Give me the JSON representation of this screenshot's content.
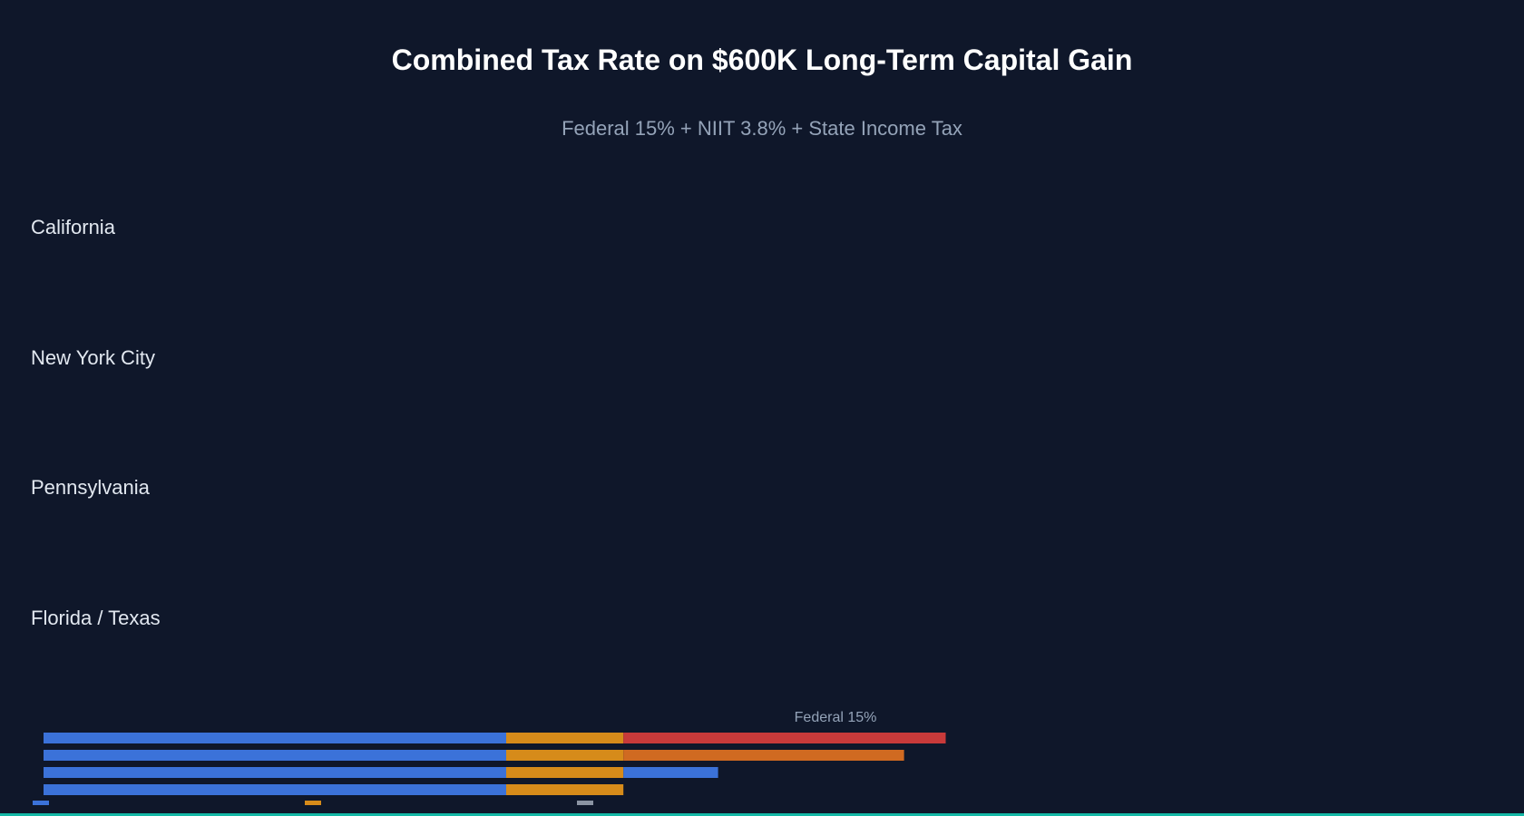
{
  "title": "Combined Tax Rate on $600K Long-Term Capital Gain",
  "subtitle": "Federal 15% + NIIT 3.8% + State Income Tax",
  "colors": {
    "background": "#0f172a",
    "federal": "#3b72d9",
    "niit": "#d68b1a",
    "state_ca": "#c83a3a",
    "state_nyc": "#d06a21",
    "state_pa": "#3b72d9",
    "legend_gray": "#8b94a3",
    "accent_line": "#14b8a6"
  },
  "chart_data": {
    "type": "bar",
    "orientation": "horizontal",
    "stacked": true,
    "categories": [
      "California",
      "New York City",
      "Pennsylvania",
      "Florida / Texas"
    ],
    "series": [
      {
        "values": [
          15,
          15,
          15,
          15
        ]
      },
      {
        "values": [
          3.8,
          3.8,
          3.8,
          3.8
        ]
      },
      {
        "values": [
          10.45,
          9.1,
          3.07,
          0
        ]
      }
    ],
    "annotations": [
      "Federal 15%"
    ],
    "legend_placement": "bottom-left"
  }
}
